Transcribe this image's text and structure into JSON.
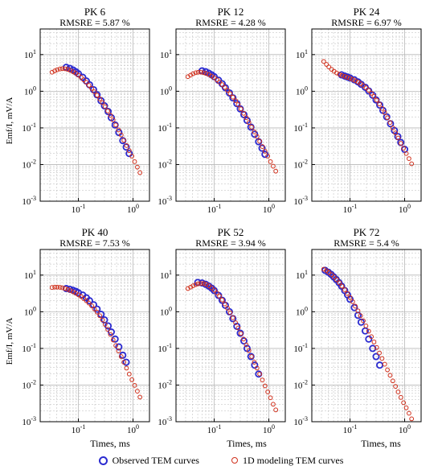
{
  "figure": {
    "shared_ylabel": "Emf/I, mV/A",
    "shared_xlabel": "Times, ms"
  },
  "legend": {
    "observed_label": "Observed TEM curves",
    "modeled_label": "1D modeling TEM curves"
  },
  "colors": {
    "observed": "#2a2ad0",
    "modeled": "#d0301c",
    "grid": "#b8b8b8"
  },
  "chart_data": [
    {
      "type": "scatter",
      "title": "PK 6",
      "subtitle": "RMSRE = 5.87 %",
      "xscale": "log",
      "yscale": "log",
      "xlim": [
        0.02,
        2
      ],
      "ylim": [
        0.001,
        50
      ],
      "xticks": [
        "10^-1",
        "10^0"
      ],
      "yticks": [
        "10^-3",
        "10^-2",
        "10^-1",
        "10^0",
        "10^1"
      ],
      "grid": true,
      "series": [
        {
          "name": "Observed TEM curves",
          "x": [
            0.06,
            0.07,
            0.08,
            0.09,
            0.1,
            0.12,
            0.14,
            0.16,
            0.19,
            0.22,
            0.26,
            0.3,
            0.35,
            0.4,
            0.47,
            0.55,
            0.65,
            0.75,
            0.85
          ],
          "y": [
            4.5,
            4.2,
            3.8,
            3.4,
            3.0,
            2.4,
            1.9,
            1.5,
            1.1,
            0.8,
            0.55,
            0.4,
            0.28,
            0.19,
            0.12,
            0.075,
            0.045,
            0.03,
            0.02
          ]
        },
        {
          "name": "1D modeling TEM curves",
          "x": [
            0.033,
            0.037,
            0.041,
            0.046,
            0.051,
            0.057,
            0.064,
            0.071,
            0.08,
            0.089,
            0.1,
            0.112,
            0.125,
            0.14,
            0.156,
            0.175,
            0.196,
            0.22,
            0.246,
            0.275,
            0.308,
            0.345,
            0.386,
            0.432,
            0.484,
            0.542,
            0.607,
            0.68,
            0.761,
            0.852,
            0.954,
            1.07,
            1.2,
            1.34
          ],
          "y": [
            3.3,
            3.6,
            3.85,
            4.05,
            4.15,
            4.1,
            3.95,
            3.7,
            3.4,
            3.1,
            2.75,
            2.4,
            2.05,
            1.75,
            1.45,
            1.2,
            0.97,
            0.78,
            0.62,
            0.49,
            0.38,
            0.29,
            0.22,
            0.165,
            0.12,
            0.088,
            0.064,
            0.046,
            0.033,
            0.024,
            0.017,
            0.012,
            0.0085,
            0.006
          ]
        }
      ]
    },
    {
      "type": "scatter",
      "title": "PK 12",
      "subtitle": "RMSRE = 4.28 %",
      "xscale": "log",
      "yscale": "log",
      "xlim": [
        0.02,
        2
      ],
      "ylim": [
        0.001,
        50
      ],
      "xticks": [
        "10^-1",
        "10^0"
      ],
      "yticks": [
        "10^-3",
        "10^-2",
        "10^-1",
        "10^0",
        "10^1"
      ],
      "grid": true,
      "series": [
        {
          "name": "Observed TEM curves",
          "x": [
            0.06,
            0.07,
            0.08,
            0.09,
            0.1,
            0.12,
            0.14,
            0.16,
            0.19,
            0.22,
            0.26,
            0.3,
            0.35,
            0.4,
            0.47,
            0.55,
            0.65,
            0.75,
            0.85
          ],
          "y": [
            3.6,
            3.4,
            3.1,
            2.8,
            2.5,
            2.0,
            1.6,
            1.25,
            0.9,
            0.66,
            0.46,
            0.33,
            0.23,
            0.16,
            0.105,
            0.067,
            0.042,
            0.028,
            0.019
          ]
        },
        {
          "name": "1D modeling TEM curves",
          "x": [
            0.033,
            0.037,
            0.041,
            0.046,
            0.051,
            0.057,
            0.064,
            0.071,
            0.08,
            0.089,
            0.1,
            0.112,
            0.125,
            0.14,
            0.156,
            0.175,
            0.196,
            0.22,
            0.246,
            0.275,
            0.308,
            0.345,
            0.386,
            0.432,
            0.484,
            0.542,
            0.607,
            0.68,
            0.761,
            0.852,
            0.954,
            1.07,
            1.2,
            1.34
          ],
          "y": [
            2.5,
            2.75,
            3.0,
            3.2,
            3.3,
            3.3,
            3.2,
            3.05,
            2.85,
            2.6,
            2.35,
            2.05,
            1.78,
            1.52,
            1.28,
            1.06,
            0.86,
            0.69,
            0.55,
            0.43,
            0.33,
            0.25,
            0.19,
            0.14,
            0.105,
            0.078,
            0.058,
            0.043,
            0.031,
            0.023,
            0.017,
            0.012,
            0.009,
            0.0066
          ]
        }
      ]
    },
    {
      "type": "scatter",
      "title": "PK 24",
      "subtitle": "RMSRE = 6.97 %",
      "xscale": "log",
      "yscale": "log",
      "xlim": [
        0.02,
        2
      ],
      "ylim": [
        0.001,
        50
      ],
      "xticks": [
        "10^-1",
        "10^0"
      ],
      "yticks": [
        "10^-3",
        "10^-2",
        "10^-1",
        "10^0",
        "10^1"
      ],
      "grid": true,
      "series": [
        {
          "name": "Observed TEM curves",
          "x": [
            0.07,
            0.08,
            0.09,
            0.1,
            0.12,
            0.14,
            0.16,
            0.19,
            0.22,
            0.26,
            0.3,
            0.35,
            0.4,
            0.47,
            0.55,
            0.65,
            0.75,
            0.85,
            1.0
          ],
          "y": [
            2.8,
            2.6,
            2.45,
            2.3,
            2.05,
            1.8,
            1.55,
            1.28,
            1.02,
            0.78,
            0.58,
            0.42,
            0.3,
            0.2,
            0.13,
            0.085,
            0.058,
            0.04,
            0.026
          ]
        },
        {
          "name": "1D modeling TEM curves",
          "x": [
            0.033,
            0.037,
            0.041,
            0.046,
            0.051,
            0.057,
            0.064,
            0.071,
            0.08,
            0.089,
            0.1,
            0.112,
            0.125,
            0.14,
            0.156,
            0.175,
            0.196,
            0.22,
            0.246,
            0.275,
            0.308,
            0.345,
            0.386,
            0.432,
            0.484,
            0.542,
            0.607,
            0.68,
            0.761,
            0.852,
            0.954,
            1.07,
            1.2,
            1.34
          ],
          "y": [
            6.5,
            5.4,
            4.6,
            3.95,
            3.5,
            3.15,
            2.9,
            2.7,
            2.55,
            2.4,
            2.25,
            2.1,
            1.95,
            1.78,
            1.6,
            1.42,
            1.24,
            1.06,
            0.88,
            0.72,
            0.57,
            0.45,
            0.34,
            0.26,
            0.19,
            0.14,
            0.1,
            0.073,
            0.053,
            0.038,
            0.028,
            0.02,
            0.0145,
            0.0105
          ]
        }
      ]
    },
    {
      "type": "scatter",
      "title": "PK 40",
      "subtitle": "RMSRE = 7.53 %",
      "xscale": "log",
      "yscale": "log",
      "xlim": [
        0.02,
        2
      ],
      "ylim": [
        0.001,
        50
      ],
      "xticks": [
        "10^-1",
        "10^0"
      ],
      "yticks": [
        "10^-3",
        "10^-2",
        "10^-1",
        "10^0",
        "10^1"
      ],
      "grid": true,
      "series": [
        {
          "name": "Observed TEM curves",
          "x": [
            0.06,
            0.07,
            0.08,
            0.09,
            0.1,
            0.12,
            0.14,
            0.16,
            0.19,
            0.22,
            0.26,
            0.3,
            0.35,
            0.4,
            0.47,
            0.55,
            0.65,
            0.75
          ],
          "y": [
            4.3,
            4.1,
            3.85,
            3.6,
            3.3,
            2.85,
            2.4,
            2.0,
            1.55,
            1.18,
            0.85,
            0.6,
            0.41,
            0.28,
            0.18,
            0.11,
            0.065,
            0.042
          ]
        },
        {
          "name": "1D modeling TEM curves",
          "x": [
            0.033,
            0.037,
            0.041,
            0.046,
            0.051,
            0.057,
            0.064,
            0.071,
            0.08,
            0.089,
            0.1,
            0.112,
            0.125,
            0.14,
            0.156,
            0.175,
            0.196,
            0.22,
            0.246,
            0.275,
            0.308,
            0.345,
            0.386,
            0.432,
            0.484,
            0.542,
            0.607,
            0.68,
            0.761,
            0.852,
            0.954,
            1.07,
            1.2,
            1.34
          ],
          "y": [
            4.6,
            4.7,
            4.7,
            4.65,
            4.5,
            4.3,
            4.05,
            3.8,
            3.5,
            3.2,
            2.9,
            2.6,
            2.3,
            2.0,
            1.72,
            1.45,
            1.2,
            0.98,
            0.78,
            0.6,
            0.45,
            0.33,
            0.24,
            0.17,
            0.12,
            0.085,
            0.06,
            0.042,
            0.029,
            0.02,
            0.014,
            0.0098,
            0.0068,
            0.0047
          ]
        }
      ]
    },
    {
      "type": "scatter",
      "title": "PK 52",
      "subtitle": "RMSRE = 3.94 %",
      "xscale": "log",
      "yscale": "log",
      "xlim": [
        0.02,
        2
      ],
      "ylim": [
        0.001,
        50
      ],
      "xticks": [
        "10^-1",
        "10^0"
      ],
      "yticks": [
        "10^-3",
        "10^-2",
        "10^-1",
        "10^0",
        "10^1"
      ],
      "grid": true,
      "series": [
        {
          "name": "Observed TEM curves",
          "x": [
            0.05,
            0.06,
            0.07,
            0.08,
            0.09,
            0.1,
            0.12,
            0.14,
            0.16,
            0.19,
            0.22,
            0.26,
            0.3,
            0.35,
            0.4,
            0.47,
            0.55,
            0.65
          ],
          "y": [
            6.3,
            6.1,
            5.6,
            5.0,
            4.4,
            3.8,
            2.8,
            2.05,
            1.5,
            1.0,
            0.65,
            0.4,
            0.26,
            0.16,
            0.1,
            0.06,
            0.035,
            0.02
          ]
        },
        {
          "name": "1D modeling TEM curves",
          "x": [
            0.033,
            0.037,
            0.041,
            0.046,
            0.051,
            0.057,
            0.064,
            0.071,
            0.08,
            0.089,
            0.1,
            0.112,
            0.125,
            0.14,
            0.156,
            0.175,
            0.196,
            0.22,
            0.246,
            0.275,
            0.308,
            0.345,
            0.386,
            0.432,
            0.484,
            0.542,
            0.607,
            0.68,
            0.761,
            0.852,
            0.954,
            1.07,
            1.2,
            1.34
          ],
          "y": [
            4.3,
            4.7,
            5.1,
            5.5,
            5.8,
            5.95,
            5.9,
            5.6,
            5.1,
            4.5,
            3.9,
            3.25,
            2.65,
            2.1,
            1.64,
            1.25,
            0.94,
            0.69,
            0.5,
            0.36,
            0.255,
            0.18,
            0.125,
            0.087,
            0.06,
            0.042,
            0.029,
            0.02,
            0.0138,
            0.0095,
            0.0065,
            0.0045,
            0.003,
            0.0021
          ]
        }
      ]
    },
    {
      "type": "scatter",
      "title": "PK 72",
      "subtitle": "RMSRE = 5.4 %",
      "xscale": "log",
      "yscale": "log",
      "xlim": [
        0.02,
        2
      ],
      "ylim": [
        0.001,
        50
      ],
      "xticks": [
        "10^-1",
        "10^0"
      ],
      "yticks": [
        "10^-3",
        "10^-2",
        "10^-1",
        "10^0",
        "10^1"
      ],
      "grid": true,
      "series": [
        {
          "name": "Observed TEM curves",
          "x": [
            0.035,
            0.04,
            0.045,
            0.05,
            0.056,
            0.063,
            0.07,
            0.08,
            0.09,
            0.1,
            0.12,
            0.14,
            0.16,
            0.19,
            0.22,
            0.26,
            0.3,
            0.35
          ],
          "y": [
            13.5,
            12.0,
            10.5,
            9.0,
            7.6,
            6.2,
            5.0,
            3.8,
            2.9,
            2.2,
            1.3,
            0.8,
            0.52,
            0.3,
            0.18,
            0.1,
            0.06,
            0.035
          ]
        },
        {
          "name": "1D modeling TEM curves",
          "x": [
            0.033,
            0.037,
            0.041,
            0.046,
            0.051,
            0.057,
            0.064,
            0.071,
            0.08,
            0.089,
            0.1,
            0.112,
            0.125,
            0.14,
            0.156,
            0.175,
            0.196,
            0.22,
            0.246,
            0.275,
            0.308,
            0.345,
            0.386,
            0.432,
            0.484,
            0.542,
            0.607,
            0.68,
            0.761,
            0.852,
            0.954,
            1.07,
            1.2,
            1.34
          ],
          "y": [
            14.5,
            13.2,
            11.8,
            10.3,
            8.9,
            7.5,
            6.2,
            5.0,
            4.0,
            3.15,
            2.45,
            1.88,
            1.42,
            1.06,
            0.78,
            0.57,
            0.41,
            0.295,
            0.21,
            0.15,
            0.106,
            0.075,
            0.053,
            0.037,
            0.026,
            0.0185,
            0.013,
            0.0092,
            0.0065,
            0.0046,
            0.0033,
            0.0024,
            0.0017,
            0.0012
          ]
        }
      ]
    }
  ]
}
